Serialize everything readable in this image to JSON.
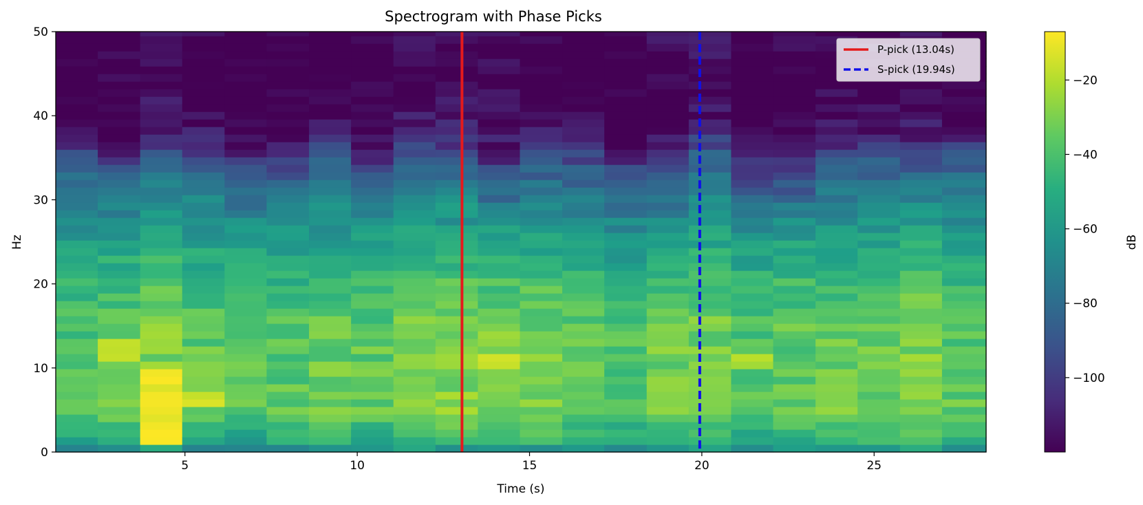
{
  "chart_data": {
    "type": "heatmap",
    "title": "Spectrogram with Phase Picks",
    "xlabel": "Time (s)",
    "ylabel": "Hz",
    "xlim": [
      1.25,
      28.25
    ],
    "ylim": [
      0,
      50
    ],
    "x_ticks": [
      5,
      10,
      15,
      20,
      25
    ],
    "y_ticks": [
      0,
      10,
      20,
      30,
      40,
      50
    ],
    "grid": false,
    "time_bins": [
      1.25,
      2.47,
      3.7,
      4.92,
      6.15,
      7.37,
      8.6,
      9.82,
      11.05,
      12.27,
      13.5,
      14.72,
      15.95,
      17.17,
      18.4,
      19.62,
      20.85,
      22.07,
      23.3,
      24.52,
      25.75,
      26.97,
      28.25
    ],
    "frequency_max_hz": 50,
    "colormap": "viridis",
    "colorbar": {
      "label": "dB",
      "range": [
        -120,
        -7
      ],
      "ticks": [
        -20,
        -40,
        -60,
        -80,
        -100
      ]
    },
    "band_profile_db": [
      {
        "hz": 0,
        "db": -70
      },
      {
        "hz": 1,
        "db": -50
      },
      {
        "hz": 5,
        "db": -32
      },
      {
        "hz": 10,
        "db": -33
      },
      {
        "hz": 15,
        "db": -35
      },
      {
        "hz": 20,
        "db": -42
      },
      {
        "hz": 25,
        "db": -55
      },
      {
        "hz": 30,
        "db": -72
      },
      {
        "hz": 34,
        "db": -92
      },
      {
        "hz": 37,
        "db": -112
      },
      {
        "hz": 40,
        "db": -120
      },
      {
        "hz": 50,
        "db": -120
      }
    ],
    "hotspots": [
      {
        "t": [
          3.7,
          4.92
        ],
        "hz": [
          1,
          10
        ],
        "db": -10
      },
      {
        "t": [
          2.47,
          3.7
        ],
        "hz": [
          11,
          13.5
        ],
        "db": -16
      },
      {
        "t": [
          4.92,
          6.15
        ],
        "hz": [
          5.5,
          7
        ],
        "db": -14
      },
      {
        "t": [
          13.5,
          14.72
        ],
        "hz": [
          9.5,
          11.5
        ],
        "db": -17
      },
      {
        "t": [
          20.85,
          22.07
        ],
        "hz": [
          10,
          12
        ],
        "db": -20
      }
    ],
    "series": [
      {
        "name": "P-pick (13.04s)",
        "x": 13.04,
        "color": "#e41a1c",
        "style": "solid"
      },
      {
        "name": "S-pick (19.94s)",
        "x": 19.94,
        "color": "#1010e8",
        "style": "dashed"
      }
    ],
    "legend": "top-right"
  }
}
